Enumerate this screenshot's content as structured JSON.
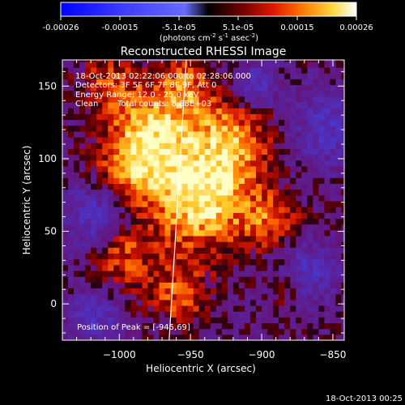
{
  "colorbar": {
    "ticks": [
      "-0.00026",
      "-0.00015",
      "-5.1e-05",
      "5.1e-05",
      "0.00015",
      "0.00026"
    ],
    "units_main": "(photons cm",
    "units_exp1": "-2",
    "units_mid": " s",
    "units_exp2": "-1",
    "units_end": " asec",
    "units_exp3": "-2",
    "units_close": ")"
  },
  "chart_data": {
    "type": "heatmap",
    "title": "Reconstructed RHESSI Image",
    "xlabel": "Heliocentric X (arcsec)",
    "ylabel": "Heliocentric Y (arcsec)",
    "xlim": [
      -1040,
      -842
    ],
    "ylim": [
      -25,
      168
    ],
    "xticks": [
      -1000,
      -950,
      -900,
      -850
    ],
    "yticks": [
      0,
      50,
      100,
      150
    ],
    "xtick_labels": [
      "−1000",
      "−950",
      "−900",
      "−850"
    ],
    "ytick_labels": [
      "0",
      "50",
      "100",
      "150"
    ],
    "colorscale": "red-temperature with blue negatives",
    "limb_line": [
      [
        -965,
        -25
      ],
      [
        -953,
        168
      ]
    ],
    "annotations": [
      "18-Oct-2013 02:22:06.000 to 02:28:06.000",
      "Detectors: 3F 5F 6F 7F 8F 9F, Att 0",
      "Energy Range: 12.0 - 25.0 keV",
      "Clean",
      "Total counts: 8.68E+03"
    ],
    "peak_label": "Position of Peak = [-945,69]",
    "peak": [
      -945,
      69
    ]
  },
  "timestamp": "18-Oct-2013 00:25"
}
